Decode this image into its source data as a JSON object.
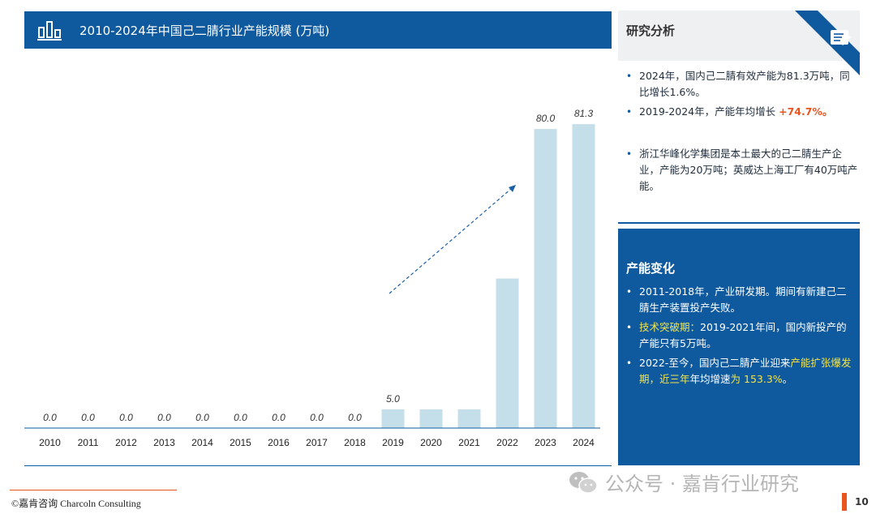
{
  "header": {
    "title": "2010-2024年中国己二腈行业产能规模 (万吨)"
  },
  "chart_data": {
    "type": "bar",
    "title": "2010-2024年中国己二腈行业产能规模 (万吨)",
    "categories": [
      "2010",
      "2011",
      "2012",
      "2013",
      "2014",
      "2015",
      "2016",
      "2017",
      "2018",
      "2019",
      "2020",
      "2021",
      "2022",
      "2023",
      "2024"
    ],
    "values": [
      0,
      0,
      0,
      0,
      0,
      0,
      0,
      0,
      0,
      5.0,
      5.0,
      5.0,
      40.0,
      80.0,
      81.3
    ],
    "data_labels": [
      "0.0",
      "0.0",
      "0.0",
      "0.0",
      "0.0",
      "0.0",
      "0.0",
      "0.0",
      "0.0",
      "5.0",
      "",
      "",
      "",
      "80.0",
      "81.3"
    ],
    "ylim": [
      0,
      90
    ],
    "grid": false,
    "legend": "none",
    "bar_color": "#c5dfea",
    "annotation": "dashed trend arrow from 2019 toward 2022"
  },
  "analysis": {
    "title": "研究分析",
    "bullets": [
      {
        "text": "2024年，国内己二腈有效产能为81.3万吨，同比增长1.6%。"
      },
      {
        "prefix": "2019-2024年，产能年均增长 ",
        "strong": "+74.7%。"
      }
    ],
    "note": "浙江华峰化学集团是本土最大的己二腈生产企业，产能为20万吨；英威达上海工厂有40万吨产能。"
  },
  "changes": {
    "title": "产能变化",
    "items": [
      {
        "text": "2011-2018年，产业研发期。期间有新建己二腈生产装置投产失败。"
      },
      {
        "highlight": "技术突破期：",
        "rest": "2019-2021年间，国内新投产的产能只有5万吨。"
      },
      {
        "pre": "2022-至今，国内己二腈产业迎来",
        "hl1": "产能扩张爆发期，近三年",
        "mid": "年均增速",
        "hl2": "为 153.3%",
        "post": "。"
      }
    ]
  },
  "footer": {
    "copyright": "©嘉肯咨询  Charcoln Consulting",
    "page": "10"
  },
  "watermark": {
    "text": "公众号 · 嘉肯行业研究"
  },
  "colors": {
    "brand_blue": "#0f5a9e",
    "accent_orange": "#e8551f",
    "highlight_yellow": "#f2e34d",
    "bar": "#c5dfea"
  }
}
